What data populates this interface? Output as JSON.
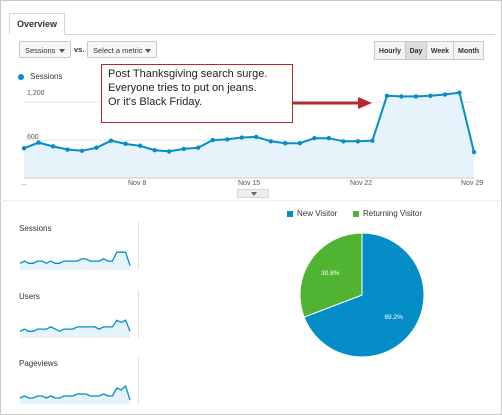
{
  "tabs": {
    "overview": "Overview"
  },
  "toolbar": {
    "metric_select": "Sessions",
    "vs_label": "vs.",
    "compare_select": "Select a metric",
    "granularity": [
      "Hourly",
      "Day",
      "Week",
      "Month"
    ],
    "granularity_selected": "Day"
  },
  "legend": {
    "series": "Sessions",
    "color": "#058dc7"
  },
  "annotation": {
    "lines": [
      "Post Thanksgiving search surge.",
      " Everyone tries to put on jeans.",
      "Or it's Black Friday."
    ],
    "border_color": "#b7282e"
  },
  "chart_data": [
    {
      "type": "area",
      "series": [
        {
          "name": "Sessions",
          "values": [
            470,
            560,
            500,
            450,
            430,
            480,
            590,
            540,
            510,
            440,
            420,
            460,
            480,
            600,
            610,
            640,
            650,
            580,
            550,
            550,
            630,
            630,
            580,
            580,
            590,
            1300,
            1290,
            1290,
            1300,
            1320,
            1350,
            410
          ]
        }
      ],
      "x_tick_labels": [
        "...",
        "Nov 8",
        "Nov 15",
        "Nov 22",
        "Nov 29"
      ],
      "y_tick_labels": [
        "1,200",
        "600"
      ],
      "ylim": [
        0,
        1550
      ],
      "fill_color": "#e6f3fa",
      "line_color": "#058dc7"
    },
    {
      "type": "pie",
      "slices": [
        {
          "label": "New Visitor",
          "value": 69.2,
          "display": "69.2%",
          "color": "#058dc7"
        },
        {
          "label": "Returning Visitor",
          "value": 30.8,
          "display": "30.8%",
          "color": "#50b432"
        }
      ]
    }
  ],
  "sparklines": [
    {
      "label": "Sessions",
      "values": [
        3,
        4,
        3,
        3,
        4,
        4,
        3,
        4,
        3,
        3,
        4,
        4,
        4,
        4,
        5,
        5,
        4,
        4,
        4,
        5,
        4,
        4,
        8,
        8,
        8,
        2
      ]
    },
    {
      "label": "Users",
      "values": [
        3,
        4,
        3,
        3,
        4,
        4,
        4,
        5,
        4,
        3,
        4,
        4,
        4,
        5,
        5,
        5,
        5,
        5,
        4,
        5,
        5,
        5,
        8,
        7,
        8,
        3
      ]
    },
    {
      "label": "Pageviews",
      "values": [
        3,
        4,
        3,
        3,
        4,
        4,
        3,
        4,
        3,
        3,
        4,
        4,
        4,
        5,
        5,
        5,
        4,
        4,
        4,
        5,
        4,
        4,
        8,
        7,
        9,
        2
      ]
    }
  ]
}
